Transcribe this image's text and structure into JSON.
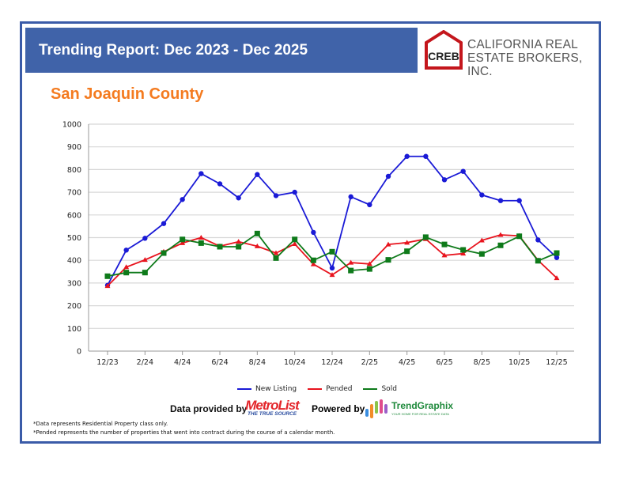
{
  "header": {
    "title": "Trending Report: Dec 2023 - Dec 2025"
  },
  "logo": {
    "mark": "CREB",
    "line1": "CALIFORNIA REAL",
    "line2": "ESTATE BROKERS, INC."
  },
  "county": "San Joaquin County",
  "footer": {
    "data_provided_by": "Data provided by",
    "metrolist": "MetroList",
    "metrolist_tag": "THE TRUE SOURCE",
    "powered_by": "Powered by",
    "trendgraphix": "TrendGraphix",
    "trendgraphix_tag": "YOUR HOME FOR REAL ESTATE DATA",
    "note1": "*Data represents Residential Property class only.",
    "note2": "*Pended represents the number of properties that went into contract during the course of a calendar month."
  },
  "chart_data": {
    "type": "line",
    "ylim": [
      0,
      1000
    ],
    "yticks": [
      0,
      100,
      200,
      300,
      400,
      500,
      600,
      700,
      800,
      900,
      1000
    ],
    "grid": true,
    "legend": "bottom",
    "x": [
      "12/23",
      "1/24",
      "2/24",
      "3/24",
      "4/24",
      "5/24",
      "6/24",
      "7/24",
      "8/24",
      "9/24",
      "10/24",
      "11/24",
      "12/24",
      "1/25",
      "2/25",
      "3/25",
      "4/25",
      "5/25",
      "6/25",
      "7/25",
      "8/25",
      "9/25",
      "10/25",
      "11/25",
      "12/25"
    ],
    "xtick_labels": [
      "12/23",
      "2/24",
      "4/24",
      "6/24",
      "8/24",
      "10/24",
      "12/24",
      "2/25",
      "4/25",
      "6/25",
      "8/25",
      "10/25",
      "12/25"
    ],
    "series": [
      {
        "name": "New Listing",
        "color": "#1a1ad6",
        "marker": "circle",
        "values": [
          290,
          445,
          497,
          562,
          668,
          782,
          737,
          675,
          778,
          685,
          700,
          523,
          366,
          680,
          645,
          770,
          858,
          858,
          755,
          792,
          688,
          663,
          663,
          490,
          412
        ]
      },
      {
        "name": "Pended",
        "color": "#e8141e",
        "marker": "triangle",
        "values": [
          287,
          370,
          402,
          438,
          476,
          500,
          462,
          482,
          462,
          432,
          472,
          383,
          336,
          390,
          384,
          470,
          478,
          494,
          422,
          430,
          488,
          512,
          508,
          400,
          322
        ]
      },
      {
        "name": "Sold",
        "color": "#0e7a1a",
        "marker": "square",
        "values": [
          330,
          346,
          346,
          432,
          492,
          476,
          460,
          460,
          518,
          410,
          492,
          400,
          438,
          355,
          362,
          402,
          440,
          502,
          470,
          446,
          428,
          466,
          506,
          398,
          432
        ]
      }
    ]
  }
}
